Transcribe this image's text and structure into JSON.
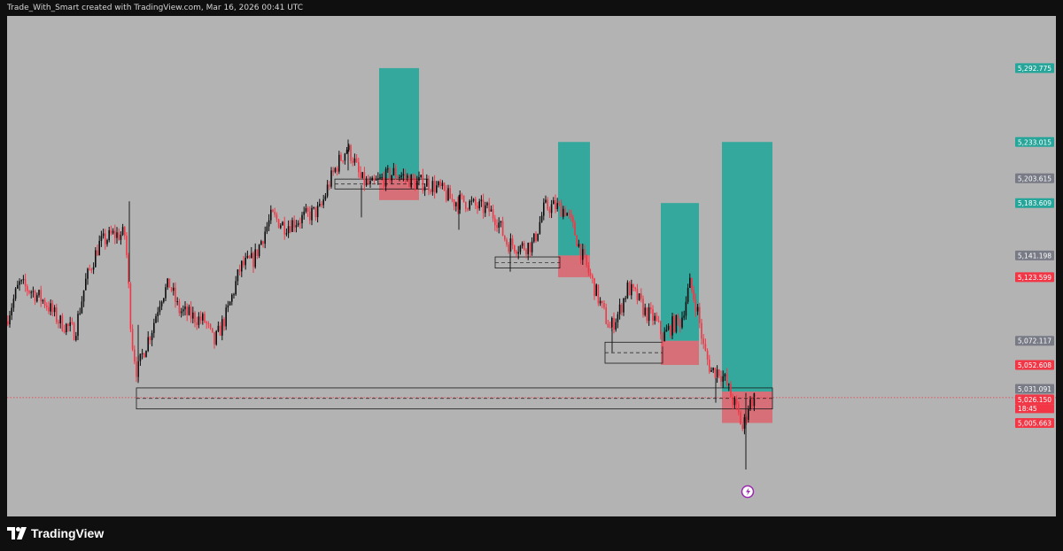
{
  "header": {
    "caption": "Trade_With_Smart created with TradingView.com, Mar 16, 2026 00:41 UTC"
  },
  "footer": {
    "brand": "TradingView",
    "logo_icon": "tradingview-logo-icon"
  },
  "colors": {
    "background": "#b3b3b3",
    "bullish": "#0c0c0c",
    "bearish": "#f23645",
    "target": "#26a69a",
    "stop": "#f23645",
    "neutral_label": "#787b86"
  },
  "chart_data": {
    "type": "candlestick",
    "title": "",
    "y_range": [
      4930,
      5335
    ],
    "x_range": [
      0,
      1110
    ],
    "grid": false,
    "current_price": 5026.15,
    "countdown": "18:45",
    "price_labels": [
      {
        "value": 5292.775,
        "text": "5,292.775",
        "kind": "target"
      },
      {
        "value": 5233.015,
        "text": "5,233.015",
        "kind": "target"
      },
      {
        "value": 5203.615,
        "text": "5,203.615",
        "kind": "neutral"
      },
      {
        "value": 5183.609,
        "text": "5,183.609",
        "kind": "target"
      },
      {
        "value": 5141.198,
        "text": "5,141.198",
        "kind": "neutral"
      },
      {
        "value": 5123.599,
        "text": "5,123.599",
        "kind": "stop"
      },
      {
        "value": 5072.117,
        "text": "5,072.117",
        "kind": "neutral"
      },
      {
        "value": 5052.608,
        "text": "5,052.608",
        "kind": "stop"
      },
      {
        "value": 5031.091,
        "text": "5,031.091",
        "kind": "neutral"
      },
      {
        "value": 5026.15,
        "text": "5,026.150",
        "kind": "current"
      },
      {
        "value": 5005.663,
        "text": "5,005.663",
        "kind": "stop"
      }
    ],
    "price_path": [
      [
        0,
        5088
      ],
      [
        15,
        5118
      ],
      [
        30,
        5112
      ],
      [
        45,
        5103
      ],
      [
        60,
        5088
      ],
      [
        78,
        5079
      ],
      [
        90,
        5120
      ],
      [
        105,
        5150
      ],
      [
        120,
        5158
      ],
      [
        135,
        5158
      ],
      [
        142,
        5074
      ],
      [
        148,
        5046
      ],
      [
        155,
        5063
      ],
      [
        165,
        5082
      ],
      [
        175,
        5108
      ],
      [
        185,
        5118
      ],
      [
        195,
        5097
      ],
      [
        210,
        5092
      ],
      [
        225,
        5088
      ],
      [
        235,
        5070
      ],
      [
        250,
        5095
      ],
      [
        265,
        5132
      ],
      [
        280,
        5138
      ],
      [
        292,
        5160
      ],
      [
        300,
        5173
      ],
      [
        315,
        5165
      ],
      [
        330,
        5170
      ],
      [
        345,
        5175
      ],
      [
        355,
        5178
      ],
      [
        365,
        5200
      ],
      [
        375,
        5216
      ],
      [
        385,
        5228
      ],
      [
        392,
        5220
      ],
      [
        400,
        5203
      ],
      [
        412,
        5197
      ],
      [
        425,
        5203
      ],
      [
        438,
        5208
      ],
      [
        450,
        5205
      ],
      [
        462,
        5200
      ],
      [
        475,
        5200
      ],
      [
        490,
        5195
      ],
      [
        505,
        5185
      ],
      [
        518,
        5185
      ],
      [
        530,
        5181
      ],
      [
        545,
        5178
      ],
      [
        555,
        5170
      ],
      [
        565,
        5152
      ],
      [
        580,
        5148
      ],
      [
        595,
        5150
      ],
      [
        608,
        5180
      ],
      [
        620,
        5181
      ],
      [
        632,
        5178
      ],
      [
        642,
        5160
      ],
      [
        652,
        5138
      ],
      [
        662,
        5120
      ],
      [
        672,
        5100
      ],
      [
        682,
        5082
      ],
      [
        692,
        5095
      ],
      [
        702,
        5115
      ],
      [
        712,
        5108
      ],
      [
        722,
        5095
      ],
      [
        732,
        5090
      ],
      [
        742,
        5075
      ],
      [
        752,
        5085
      ],
      [
        762,
        5088
      ],
      [
        772,
        5118
      ],
      [
        780,
        5100
      ],
      [
        788,
        5065
      ],
      [
        796,
        5048
      ],
      [
        805,
        5048
      ],
      [
        812,
        5040
      ],
      [
        820,
        5025
      ],
      [
        826,
        5015
      ],
      [
        832,
        5000
      ],
      [
        838,
        5020
      ],
      [
        844,
        5026
      ]
    ],
    "wicks": [
      {
        "x": 148,
        "high": 5085,
        "low": 5038
      },
      {
        "x": 138,
        "high": 5185,
        "low": 5120
      },
      {
        "x": 385,
        "high": 5235,
        "low": 5210
      },
      {
        "x": 400,
        "high": 5198,
        "low": 5172
      },
      {
        "x": 510,
        "high": 5190,
        "low": 5162
      },
      {
        "x": 568,
        "high": 5150,
        "low": 5128
      },
      {
        "x": 683,
        "high": 5082,
        "low": 5063
      },
      {
        "x": 800,
        "high": 5042,
        "low": 5022
      },
      {
        "x": 834,
        "high": 5030,
        "low": 4968
      }
    ],
    "zones": [
      {
        "kind": "demand",
        "x0": 146,
        "x1": 864,
        "y_top": 5034,
        "y_bottom": 5017
      },
      {
        "kind": "supply",
        "x0": 370,
        "x1": 476,
        "y_top": 5203,
        "y_bottom": 5195
      },
      {
        "kind": "demand",
        "x0": 551,
        "x1": 624,
        "y_top": 5140,
        "y_bottom": 5131
      },
      {
        "kind": "demand",
        "x0": 675,
        "x1": 740,
        "y_top": 5071,
        "y_bottom": 5054
      }
    ],
    "positions": [
      {
        "x0": 420,
        "x1": 465,
        "entry": 5203.615,
        "target": 5292.775,
        "stop": 5186
      },
      {
        "x0": 622,
        "x1": 658,
        "entry": 5141.198,
        "target": 5233.015,
        "stop": 5123.599
      },
      {
        "x0": 738,
        "x1": 781,
        "entry": 5072.117,
        "target": 5183.609,
        "stop": 5052.608
      },
      {
        "x0": 807,
        "x1": 864,
        "entry": 5031.091,
        "target": 5233.015,
        "stop": 5005.663
      }
    ]
  }
}
